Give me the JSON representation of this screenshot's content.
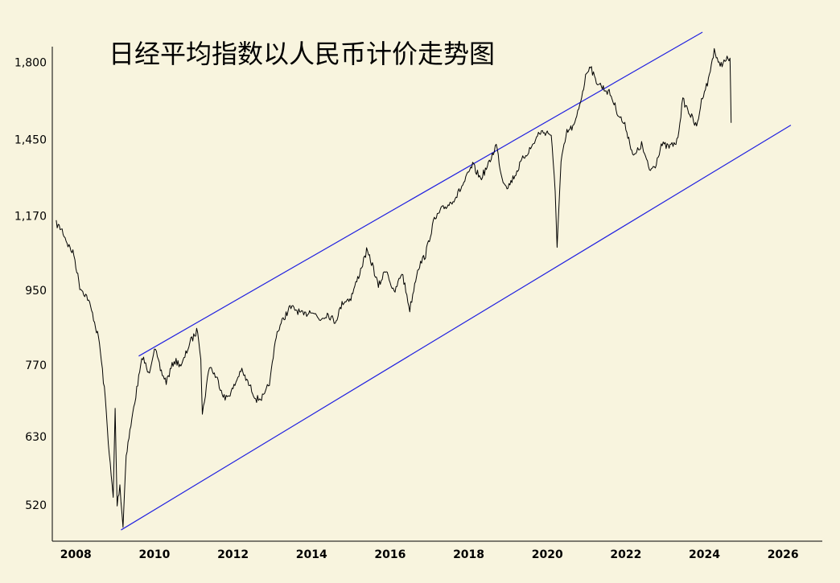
{
  "chart_data": {
    "type": "line",
    "title": "日经平均指数以人民币计价走势图",
    "xlabel": "",
    "ylabel": "",
    "y_scale": "log",
    "ylim": [
      470,
      1960
    ],
    "xlim": [
      2007.4,
      2027.0
    ],
    "yticks": [
      520,
      630,
      770,
      950,
      1170,
      1450,
      1800
    ],
    "ytick_labels": [
      "520",
      "630",
      "770",
      "950",
      "1,170",
      "1,450",
      "1,800"
    ],
    "xticks": [
      2008,
      2010,
      2012,
      2014,
      2016,
      2018,
      2020,
      2022,
      2024,
      2026
    ],
    "xtick_labels": [
      "2008",
      "2010",
      "2012",
      "2014",
      "2016",
      "2018",
      "2020",
      "2022",
      "2024",
      "2026"
    ],
    "grid": false,
    "colors": {
      "price": "#000000",
      "channel": "#2020e0",
      "background": "#f8f4de"
    },
    "series": [
      {
        "x": [
          2007.5,
          2007.65,
          2007.8,
          2007.95,
          2008.1,
          2008.3,
          2008.45,
          2008.6,
          2008.75,
          2008.85,
          2008.95,
          2009.0,
          2009.05,
          2009.12,
          2009.2,
          2009.28,
          2009.4,
          2009.55,
          2009.7,
          2009.85,
          2010.0,
          2010.15,
          2010.3,
          2010.5,
          2010.7,
          2010.9,
          2011.1,
          2011.18,
          2011.22,
          2011.4,
          2011.6,
          2011.8,
          2012.0,
          2012.2,
          2012.4,
          2012.6,
          2012.8,
          2012.95,
          2013.1,
          2013.3,
          2013.45,
          2013.6,
          2013.8,
          2014.0,
          2014.2,
          2014.4,
          2014.6,
          2014.8,
          2015.0,
          2015.2,
          2015.4,
          2015.55,
          2015.7,
          2015.9,
          2016.1,
          2016.3,
          2016.5,
          2016.7,
          2016.9,
          2017.1,
          2017.3,
          2017.5,
          2017.7,
          2017.9,
          2018.0,
          2018.1,
          2018.3,
          2018.5,
          2018.7,
          2018.85,
          2019.0,
          2019.2,
          2019.4,
          2019.6,
          2019.8,
          2020.0,
          2020.1,
          2020.2,
          2020.25,
          2020.35,
          2020.5,
          2020.7,
          2020.9,
          2021.0,
          2021.1,
          2021.2,
          2021.4,
          2021.6,
          2021.8,
          2022.0,
          2022.2,
          2022.4,
          2022.6,
          2022.75,
          2022.9,
          2023.1,
          2023.3,
          2023.45,
          2023.6,
          2023.8,
          2023.95,
          2024.1,
          2024.25,
          2024.35,
          2024.5,
          2024.6,
          2024.65,
          2024.68
        ],
        "values": [
          1145,
          1125,
          1080,
          1050,
          960,
          930,
          880,
          820,
          700,
          600,
          530,
          680,
          520,
          550,
          490,
          600,
          650,
          720,
          790,
          750,
          810,
          760,
          735,
          780,
          770,
          820,
          850,
          790,
          670,
          770,
          740,
          700,
          720,
          760,
          730,
          700,
          705,
          740,
          840,
          880,
          905,
          900,
          885,
          900,
          875,
          890,
          870,
          920,
          930,
          990,
          1060,
          1020,
          960,
          1010,
          940,
          1000,
          900,
          1010,
          1050,
          1150,
          1190,
          1210,
          1240,
          1290,
          1320,
          1350,
          1300,
          1350,
          1430,
          1300,
          1270,
          1320,
          1380,
          1420,
          1480,
          1480,
          1470,
          1250,
          1080,
          1360,
          1480,
          1510,
          1660,
          1750,
          1790,
          1720,
          1680,
          1650,
          1560,
          1500,
          1380,
          1430,
          1330,
          1350,
          1430,
          1420,
          1440,
          1620,
          1570,
          1500,
          1640,
          1710,
          1870,
          1790,
          1800,
          1820,
          1820,
          1520
        ]
      }
    ],
    "channel_lines": [
      {
        "x": [
          2009.6,
          2023.95
        ],
        "values": [
          790,
          1960
        ]
      },
      {
        "x": [
          2009.15,
          2026.2
        ],
        "values": [
          485,
          1510
        ]
      }
    ]
  }
}
